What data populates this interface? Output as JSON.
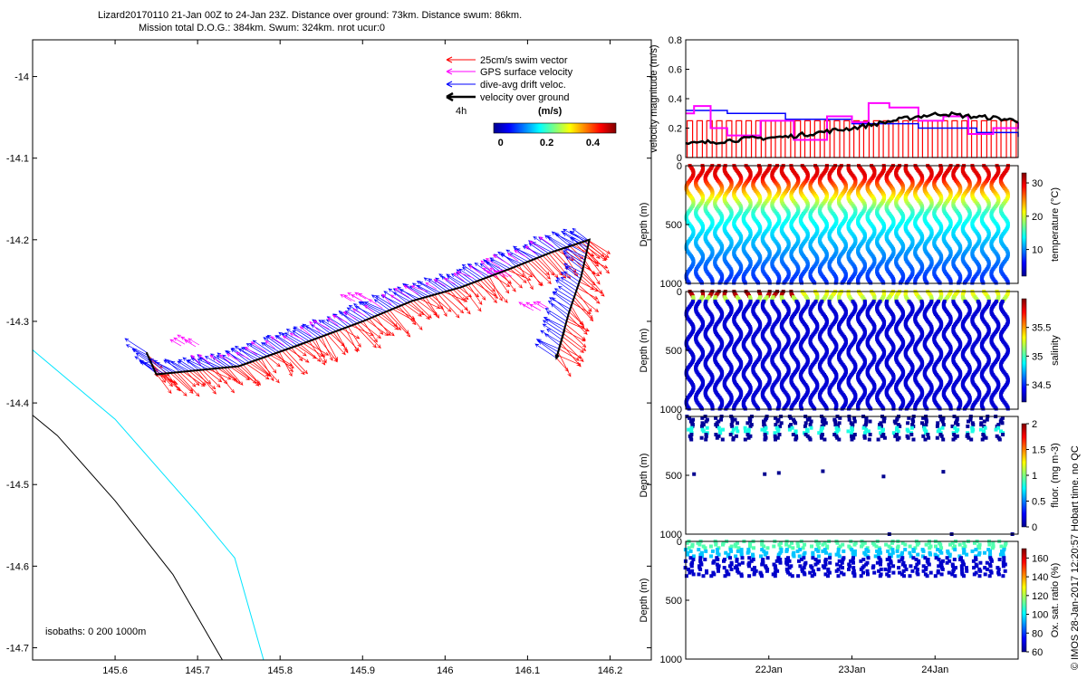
{
  "header": {
    "line1": "Lizard20170110 21-Jan 00Z to 24-Jan 23Z. Distance over ground: 73km. Distance swum: 86km.",
    "line2": "Mission total D.O.G.: 384km. Swum: 324km. nrot ucur:0"
  },
  "footer_vertical": "© IMOS 28-Jan-2017 12:20:57 Hobart time. no QC",
  "colors": {
    "swim": "#ff0000",
    "gps": "#ff00ff",
    "drift": "#0000ff",
    "ground": "#000000",
    "isobath_0": "#000000",
    "isobath_200": "#00e5ff"
  },
  "chart_data": [
    {
      "id": "map",
      "type": "scatter",
      "title": "",
      "xlabel": "",
      "ylabel": "",
      "xlim": [
        145.5,
        146.25
      ],
      "ylim": [
        -14.715,
        -13.955
      ],
      "xticks": [
        "145.6",
        "145.7",
        "145.8",
        "145.9",
        "146",
        "146.1",
        "146.2"
      ],
      "xtick_values": [
        145.6,
        145.7,
        145.8,
        145.9,
        146.0,
        146.1,
        146.2
      ],
      "yticks": [
        "-14",
        "-14.1",
        "-14.2",
        "-14.3",
        "-14.4",
        "-14.5",
        "-14.6",
        "-14.7"
      ],
      "ytick_values": [
        -14.0,
        -14.1,
        -14.2,
        -14.3,
        -14.4,
        -14.5,
        -14.6,
        -14.7
      ],
      "track": {
        "x": [
          145.638,
          145.65,
          145.7,
          145.75,
          145.82,
          145.9,
          145.96,
          146.02,
          146.08,
          146.13,
          146.175,
          146.165,
          146.15,
          146.135
        ],
        "y": [
          -14.338,
          -14.365,
          -14.36,
          -14.355,
          -14.33,
          -14.3,
          -14.275,
          -14.258,
          -14.235,
          -14.215,
          -14.2,
          -14.245,
          -14.29,
          -14.345
        ]
      },
      "legend": {
        "items": [
          {
            "label": "25cm/s swim vector",
            "color": "#ff0000"
          },
          {
            "label": "GPS surface velocity",
            "color": "#ff00ff"
          },
          {
            "label": "dive-avg drift veloc.",
            "color": "#0000ff"
          },
          {
            "label": "velocity over ground",
            "color": "#000000"
          }
        ],
        "position": "top-right",
        "duration_label": "4h"
      },
      "colorbar": {
        "title": "(m/s)",
        "ticks": [
          "0",
          "0.2",
          "0.4"
        ],
        "tick_values": [
          0,
          0.2,
          0.4
        ],
        "range": [
          -0.03,
          0.5
        ]
      },
      "isobaths": {
        "label": "isobaths: 0   200  1000m",
        "zero": {
          "x": [
            145.5,
            145.53,
            145.6,
            145.67,
            145.73
          ],
          "y": [
            -14.415,
            -14.44,
            -14.52,
            -14.61,
            -14.715
          ]
        },
        "two_hundred": {
          "x": [
            145.5,
            145.6,
            145.7,
            145.745,
            145.78
          ],
          "y": [
            -14.335,
            -14.42,
            -14.535,
            -14.59,
            -14.715
          ]
        }
      }
    },
    {
      "id": "velocity",
      "type": "line",
      "ylabel": "velocity magnitude (m/s)",
      "ylim": [
        0,
        0.8
      ],
      "yticks": [
        "0",
        "0.2",
        "0.4",
        "0.6",
        "0.8"
      ],
      "ytick_values": [
        0,
        0.2,
        0.4,
        0.6,
        0.8
      ],
      "series": [
        {
          "name": "dive-avg drift veloc.",
          "color": "#0000ff",
          "x": [
            0,
            0.5,
            1.2,
            2.0,
            2.8,
            3.5,
            4.0
          ],
          "y": [
            0.32,
            0.3,
            0.26,
            0.23,
            0.2,
            0.17,
            0.14
          ]
        },
        {
          "name": "GPS surface velocity",
          "color": "#ff00ff",
          "x": [
            0,
            0.1,
            0.3,
            0.5,
            0.9,
            1.3,
            1.7,
            2.0,
            2.2,
            2.45,
            2.8,
            3.1,
            3.4,
            3.7,
            4.0
          ],
          "y": [
            0.3,
            0.35,
            0.2,
            0.15,
            0.25,
            0.12,
            0.28,
            0.24,
            0.37,
            0.34,
            0.25,
            0.28,
            0.16,
            0.2,
            0.24
          ]
        },
        {
          "name": "velocity over ground",
          "color": "#000000",
          "x": [
            0,
            0.4,
            0.8,
            1.2,
            1.6,
            2.0,
            2.4,
            2.8,
            3.1,
            3.4,
            3.7,
            4.0
          ],
          "y": [
            0.09,
            0.11,
            0.13,
            0.14,
            0.17,
            0.2,
            0.24,
            0.28,
            0.3,
            0.28,
            0.27,
            0.25
          ]
        },
        {
          "name": "25cm/s swim vector",
          "color": "#ff0000",
          "x": [
            0,
            4.0
          ],
          "y": [
            0.25,
            0.25
          ]
        }
      ]
    },
    {
      "id": "temperature",
      "type": "scatter",
      "ylabel": "Depth (m)",
      "ylim": [
        1000,
        0
      ],
      "yticks": [
        "0",
        "500",
        "1000"
      ],
      "colorbar_label": "temperature (°C)",
      "colorbar_ticks": [
        "10",
        "20",
        "30"
      ],
      "colorbar_tick_values": [
        10,
        20,
        30
      ],
      "colorbar_range": [
        2,
        33
      ],
      "profiles": 34
    },
    {
      "id": "salinity",
      "type": "scatter",
      "ylabel": "Depth (m)",
      "ylim": [
        1000,
        0
      ],
      "yticks": [
        "0",
        "500",
        "1000"
      ],
      "colorbar_label": "salinity",
      "colorbar_ticks": [
        "34.5",
        "35",
        "35.5"
      ],
      "colorbar_tick_values": [
        34.5,
        35,
        35.5
      ],
      "colorbar_range": [
        34.2,
        36.0
      ],
      "profiles": 34
    },
    {
      "id": "fluorescence",
      "type": "scatter",
      "ylabel": "Depth (m)",
      "ylim": [
        1000,
        0
      ],
      "yticks": [
        "0",
        "500",
        "1000"
      ],
      "colorbar_label": "fluor. (mg m-3)",
      "colorbar_ticks": [
        "0",
        "0.5",
        "1",
        "1.5",
        "2"
      ],
      "colorbar_tick_values": [
        0,
        0.5,
        1,
        1.5,
        2
      ],
      "colorbar_range": [
        0,
        2
      ],
      "profiles": 22,
      "outliers": [
        {
          "x": 0.1,
          "depth": 490
        },
        {
          "x": 0.95,
          "depth": 490
        },
        {
          "x": 1.12,
          "depth": 480
        },
        {
          "x": 1.65,
          "depth": 465
        },
        {
          "x": 2.38,
          "depth": 510
        },
        {
          "x": 3.1,
          "depth": 470
        },
        {
          "x": 2.45,
          "depth": 1000
        },
        {
          "x": 3.2,
          "depth": 1000
        },
        {
          "x": 3.93,
          "depth": 1000
        }
      ]
    },
    {
      "id": "oxygen",
      "type": "scatter",
      "ylabel": "Depth (m)",
      "ylim": [
        1000,
        0
      ],
      "yticks": [
        "0",
        "500",
        "1000"
      ],
      "colorbar_label": "Ox. sat. ratio (%)",
      "colorbar_ticks": [
        "60",
        "80",
        "100",
        "120",
        "140",
        "160"
      ],
      "colorbar_tick_values": [
        60,
        80,
        100,
        120,
        140,
        160
      ],
      "colorbar_range": [
        60,
        170
      ],
      "profiles": 26,
      "time_axis": {
        "ticks": [
          "22Jan",
          "23Jan",
          "24Jan"
        ],
        "tick_values": [
          1,
          2,
          3
        ],
        "range": [
          0,
          4.0
        ]
      }
    }
  ]
}
